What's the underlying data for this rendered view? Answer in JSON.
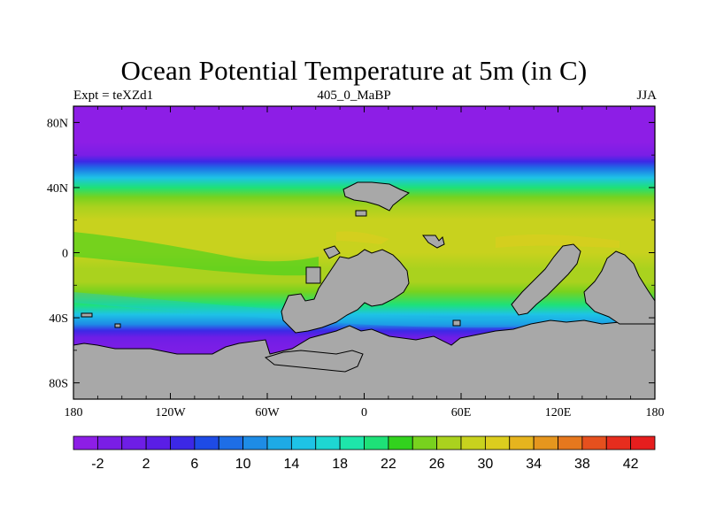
{
  "title": "Ocean Potential Temperature at 5m (in C)",
  "subtitle_left": "Expt = teXZd1",
  "subtitle_center": "405_0_MaBP",
  "subtitle_right": "JJA",
  "map": {
    "projection": "cylindrical equidistant",
    "lon_range": [
      -180,
      180
    ],
    "lat_range": [
      -90,
      90
    ],
    "lon_ticks": [
      {
        "value": -180,
        "label": "180"
      },
      {
        "value": -120,
        "label": "120W"
      },
      {
        "value": -60,
        "label": "60W"
      },
      {
        "value": 0,
        "label": "0"
      },
      {
        "value": 60,
        "label": "60E"
      },
      {
        "value": 120,
        "label": "120E"
      },
      {
        "value": 180,
        "label": "180"
      }
    ],
    "lat_ticks": [
      {
        "value": 80,
        "label": "80N"
      },
      {
        "value": 40,
        "label": "40N"
      },
      {
        "value": 0,
        "label": "0"
      },
      {
        "value": -40,
        "label": "40S"
      },
      {
        "value": -80,
        "label": "80S"
      }
    ],
    "land_color": "#a8a8a8",
    "temperature_profile": [
      [
        90,
        -2.8
      ],
      [
        68,
        -2.3
      ],
      [
        60,
        -1.5
      ],
      [
        56,
        4.5
      ],
      [
        52,
        9
      ],
      [
        46,
        15
      ],
      [
        40,
        20
      ],
      [
        34,
        24
      ],
      [
        28,
        26.5
      ],
      [
        20,
        28.5
      ],
      [
        10,
        29.5
      ],
      [
        0,
        29
      ],
      [
        -10,
        27.5
      ],
      [
        -18,
        26.5
      ],
      [
        -24,
        24
      ],
      [
        -32,
        20
      ],
      [
        -38,
        15
      ],
      [
        -44,
        10
      ],
      [
        -48,
        5
      ],
      [
        -52,
        0
      ],
      [
        -58,
        -2
      ],
      [
        -90,
        -2.5
      ]
    ]
  },
  "colorbar": {
    "colors": [
      "#8d1ee6",
      "#7a1ee6",
      "#6e1ee6",
      "#5a1ee6",
      "#3c28e6",
      "#1e4be6",
      "#1e6ee6",
      "#1e8ce6",
      "#1eaae6",
      "#1ec3e6",
      "#1ed7d2",
      "#1ee6aa",
      "#1ee178",
      "#32d21e",
      "#78d21e",
      "#aad21e",
      "#c8d21e",
      "#dccd1e",
      "#e6b41e",
      "#e6961e",
      "#e6781e",
      "#e6501e",
      "#e62d1e",
      "#e61e1e"
    ],
    "boundaries": [
      -4,
      -2,
      0,
      2,
      4,
      6,
      8,
      10,
      12,
      14,
      16,
      18,
      20,
      22,
      24,
      26,
      28,
      30,
      32,
      34,
      36,
      38,
      40,
      42,
      44
    ],
    "labels": [
      "-2",
      "2",
      "6",
      "10",
      "14",
      "18",
      "22",
      "26",
      "30",
      "34",
      "38",
      "42"
    ]
  }
}
